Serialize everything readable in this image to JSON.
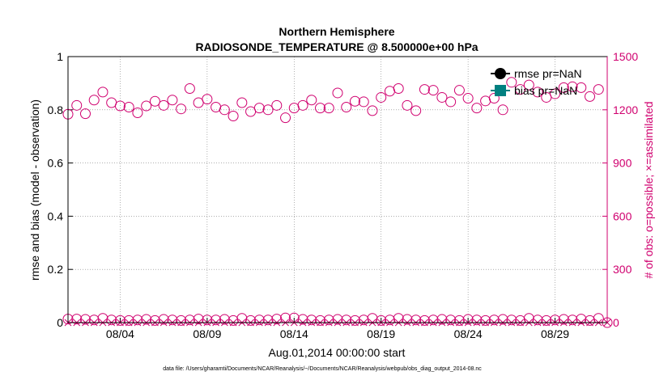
{
  "chart_data": {
    "type": "scatter",
    "title": "Northern Hemisphere",
    "subtitle": "RADIOSONDE_TEMPERATURE @ 8.500000e+00 hPa",
    "xlabel": "Aug.01,2014 00:00:00 start",
    "ylabel_left": "rmse and bias (model - observation)",
    "ylabel_right": "# of obs: o=possible; ×=assimilated",
    "footnote": "data file: /Users/gharamti/Documents/NCAR/Reanalysis/~/Documents/NCAR/Reanalysis/webpub/obs_diag_output_2014-08.nc",
    "xlim_days": [
      0,
      31
    ],
    "ylim_left": [
      0,
      1
    ],
    "ylim_right": [
      0,
      1500
    ],
    "left_ticks": [
      "0",
      "0.2",
      "0.4",
      "0.6",
      "0.8",
      "1"
    ],
    "left_tick_values": [
      0,
      0.2,
      0.4,
      0.6,
      0.8,
      1
    ],
    "right_ticks": [
      "0",
      "300",
      "600",
      "900",
      "1200",
      "1500"
    ],
    "right_tick_values": [
      0,
      300,
      600,
      900,
      1200,
      1500
    ],
    "x_ticks": [
      {
        "label": "08/04",
        "day": 3
      },
      {
        "label": "08/09",
        "day": 8
      },
      {
        "label": "08/14",
        "day": 13
      },
      {
        "label": "08/19",
        "day": 18
      },
      {
        "label": "08/24",
        "day": 23
      },
      {
        "label": "08/29",
        "day": 28
      }
    ],
    "legend": [
      {
        "label": "rmse pr=NaN",
        "color": "#000000"
      },
      {
        "label": "bias pr=NaN",
        "color": "#008080"
      }
    ],
    "legend_position": "top-right",
    "grid": true,
    "colors": {
      "obs": "#d0006f",
      "axis": "#000000"
    },
    "series": [
      {
        "name": "possible obs (upper cluster)",
        "marker": "circle",
        "values": [
          {
            "x": 0.0,
            "y": 1175
          },
          {
            "x": 0.5,
            "y": 1225
          },
          {
            "x": 1.0,
            "y": 1178
          },
          {
            "x": 1.5,
            "y": 1255
          },
          {
            "x": 2.0,
            "y": 1300
          },
          {
            "x": 2.5,
            "y": 1240
          },
          {
            "x": 3.0,
            "y": 1222
          },
          {
            "x": 3.5,
            "y": 1215
          },
          {
            "x": 4.0,
            "y": 1183
          },
          {
            "x": 4.5,
            "y": 1222
          },
          {
            "x": 5.0,
            "y": 1248
          },
          {
            "x": 5.5,
            "y": 1225
          },
          {
            "x": 6.0,
            "y": 1255
          },
          {
            "x": 6.5,
            "y": 1205
          },
          {
            "x": 7.0,
            "y": 1320
          },
          {
            "x": 7.5,
            "y": 1240
          },
          {
            "x": 8.0,
            "y": 1260
          },
          {
            "x": 8.5,
            "y": 1215
          },
          {
            "x": 9.0,
            "y": 1200
          },
          {
            "x": 9.5,
            "y": 1165
          },
          {
            "x": 10.0,
            "y": 1240
          },
          {
            "x": 10.5,
            "y": 1190
          },
          {
            "x": 11.0,
            "y": 1210
          },
          {
            "x": 11.5,
            "y": 1200
          },
          {
            "x": 12.0,
            "y": 1225
          },
          {
            "x": 12.5,
            "y": 1155
          },
          {
            "x": 13.0,
            "y": 1210
          },
          {
            "x": 13.5,
            "y": 1225
          },
          {
            "x": 14.0,
            "y": 1255
          },
          {
            "x": 14.5,
            "y": 1210
          },
          {
            "x": 15.0,
            "y": 1210
          },
          {
            "x": 15.5,
            "y": 1295
          },
          {
            "x": 16.0,
            "y": 1215
          },
          {
            "x": 16.5,
            "y": 1248
          },
          {
            "x": 17.0,
            "y": 1245
          },
          {
            "x": 17.5,
            "y": 1195
          },
          {
            "x": 18.0,
            "y": 1270
          },
          {
            "x": 18.5,
            "y": 1305
          },
          {
            "x": 19.0,
            "y": 1320
          },
          {
            "x": 19.5,
            "y": 1225
          },
          {
            "x": 20.0,
            "y": 1195
          },
          {
            "x": 20.5,
            "y": 1315
          },
          {
            "x": 21.0,
            "y": 1310
          },
          {
            "x": 21.5,
            "y": 1270
          },
          {
            "x": 22.0,
            "y": 1245
          },
          {
            "x": 22.5,
            "y": 1310
          },
          {
            "x": 23.0,
            "y": 1265
          },
          {
            "x": 23.5,
            "y": 1210
          },
          {
            "x": 24.0,
            "y": 1250
          },
          {
            "x": 24.5,
            "y": 1265
          },
          {
            "x": 25.0,
            "y": 1200
          },
          {
            "x": 25.5,
            "y": 1355
          },
          {
            "x": 26.0,
            "y": 1315
          },
          {
            "x": 26.5,
            "y": 1340
          },
          {
            "x": 27.0,
            "y": 1300
          },
          {
            "x": 27.5,
            "y": 1270
          },
          {
            "x": 28.0,
            "y": 1290
          },
          {
            "x": 28.5,
            "y": 1325
          },
          {
            "x": 29.0,
            "y": 1330
          },
          {
            "x": 29.5,
            "y": 1325
          },
          {
            "x": 30.0,
            "y": 1275
          },
          {
            "x": 30.5,
            "y": 1315
          }
        ]
      },
      {
        "name": "possible obs (lower cluster)",
        "marker": "circle",
        "values": [
          {
            "x": 0.0,
            "y": 20
          },
          {
            "x": 0.5,
            "y": 20
          },
          {
            "x": 1.0,
            "y": 18
          },
          {
            "x": 1.5,
            "y": 15
          },
          {
            "x": 2.0,
            "y": 24
          },
          {
            "x": 2.5,
            "y": 15
          },
          {
            "x": 3.0,
            "y": 12
          },
          {
            "x": 3.5,
            "y": 12
          },
          {
            "x": 4.0,
            "y": 15
          },
          {
            "x": 4.5,
            "y": 18
          },
          {
            "x": 5.0,
            "y": 12
          },
          {
            "x": 5.5,
            "y": 18
          },
          {
            "x": 6.0,
            "y": 15
          },
          {
            "x": 6.5,
            "y": 12
          },
          {
            "x": 7.0,
            "y": 15
          },
          {
            "x": 7.5,
            "y": 20
          },
          {
            "x": 8.0,
            "y": 15
          },
          {
            "x": 8.5,
            "y": 15
          },
          {
            "x": 9.0,
            "y": 18
          },
          {
            "x": 9.5,
            "y": 12
          },
          {
            "x": 10.0,
            "y": 24
          },
          {
            "x": 10.5,
            "y": 12
          },
          {
            "x": 11.0,
            "y": 15
          },
          {
            "x": 11.5,
            "y": 15
          },
          {
            "x": 12.0,
            "y": 20
          },
          {
            "x": 12.5,
            "y": 26
          },
          {
            "x": 13.0,
            "y": 26
          },
          {
            "x": 13.5,
            "y": 18
          },
          {
            "x": 14.0,
            "y": 15
          },
          {
            "x": 14.5,
            "y": 12
          },
          {
            "x": 15.0,
            "y": 15
          },
          {
            "x": 15.5,
            "y": 18
          },
          {
            "x": 16.0,
            "y": 15
          },
          {
            "x": 16.5,
            "y": 12
          },
          {
            "x": 17.0,
            "y": 15
          },
          {
            "x": 17.5,
            "y": 24
          },
          {
            "x": 18.0,
            "y": 12
          },
          {
            "x": 18.5,
            "y": 15
          },
          {
            "x": 19.0,
            "y": 24
          },
          {
            "x": 19.5,
            "y": 18
          },
          {
            "x": 20.0,
            "y": 15
          },
          {
            "x": 20.5,
            "y": 12
          },
          {
            "x": 21.0,
            "y": 15
          },
          {
            "x": 21.5,
            "y": 18
          },
          {
            "x": 22.0,
            "y": 15
          },
          {
            "x": 22.5,
            "y": 12
          },
          {
            "x": 23.0,
            "y": 18
          },
          {
            "x": 23.5,
            "y": 15
          },
          {
            "x": 24.0,
            "y": 12
          },
          {
            "x": 24.5,
            "y": 15
          },
          {
            "x": 25.0,
            "y": 18
          },
          {
            "x": 25.5,
            "y": 15
          },
          {
            "x": 26.0,
            "y": 12
          },
          {
            "x": 26.5,
            "y": 24
          },
          {
            "x": 27.0,
            "y": 15
          },
          {
            "x": 27.5,
            "y": 12
          },
          {
            "x": 28.0,
            "y": 15
          },
          {
            "x": 28.5,
            "y": 18
          },
          {
            "x": 29.0,
            "y": 15
          },
          {
            "x": 29.5,
            "y": 20
          },
          {
            "x": 30.0,
            "y": 12
          },
          {
            "x": 30.5,
            "y": 24
          },
          {
            "x": 31.0,
            "y": 0
          }
        ]
      },
      {
        "name": "assimilated obs",
        "marker": "x",
        "values": [
          {
            "x": 0.0,
            "y": 0
          },
          {
            "x": 0.5,
            "y": 0
          },
          {
            "x": 1.0,
            "y": 0
          },
          {
            "x": 1.5,
            "y": 0
          },
          {
            "x": 2.0,
            "y": 0
          },
          {
            "x": 2.5,
            "y": 0
          },
          {
            "x": 3.0,
            "y": 0
          },
          {
            "x": 3.5,
            "y": 0
          },
          {
            "x": 4.0,
            "y": 0
          },
          {
            "x": 4.5,
            "y": 0
          },
          {
            "x": 5.0,
            "y": 0
          },
          {
            "x": 5.5,
            "y": 0
          },
          {
            "x": 6.0,
            "y": 0
          },
          {
            "x": 6.5,
            "y": 0
          },
          {
            "x": 7.0,
            "y": 0
          },
          {
            "x": 7.5,
            "y": 0
          },
          {
            "x": 8.0,
            "y": 0
          },
          {
            "x": 8.5,
            "y": 0
          },
          {
            "x": 9.0,
            "y": 0
          },
          {
            "x": 9.5,
            "y": 0
          },
          {
            "x": 10.0,
            "y": 0
          },
          {
            "x": 10.5,
            "y": 0
          },
          {
            "x": 11.0,
            "y": 0
          },
          {
            "x": 11.5,
            "y": 0
          },
          {
            "x": 12.0,
            "y": 0
          },
          {
            "x": 12.5,
            "y": 0
          },
          {
            "x": 13.0,
            "y": 0
          },
          {
            "x": 13.5,
            "y": 0
          },
          {
            "x": 14.0,
            "y": 0
          },
          {
            "x": 14.5,
            "y": 0
          },
          {
            "x": 15.0,
            "y": 0
          },
          {
            "x": 15.5,
            "y": 0
          },
          {
            "x": 16.0,
            "y": 0
          },
          {
            "x": 16.5,
            "y": 0
          },
          {
            "x": 17.0,
            "y": 0
          },
          {
            "x": 17.5,
            "y": 0
          },
          {
            "x": 18.0,
            "y": 0
          },
          {
            "x": 18.5,
            "y": 0
          },
          {
            "x": 19.0,
            "y": 0
          },
          {
            "x": 19.5,
            "y": 0
          },
          {
            "x": 20.0,
            "y": 0
          },
          {
            "x": 20.5,
            "y": 0
          },
          {
            "x": 21.0,
            "y": 0
          },
          {
            "x": 21.5,
            "y": 0
          },
          {
            "x": 22.0,
            "y": 0
          },
          {
            "x": 22.5,
            "y": 0
          },
          {
            "x": 23.0,
            "y": 0
          },
          {
            "x": 23.5,
            "y": 0
          },
          {
            "x": 24.0,
            "y": 0
          },
          {
            "x": 24.5,
            "y": 0
          },
          {
            "x": 25.0,
            "y": 0
          },
          {
            "x": 25.5,
            "y": 0
          },
          {
            "x": 26.0,
            "y": 0
          },
          {
            "x": 26.5,
            "y": 0
          },
          {
            "x": 27.0,
            "y": 0
          },
          {
            "x": 27.5,
            "y": 0
          },
          {
            "x": 28.0,
            "y": 0
          },
          {
            "x": 28.5,
            "y": 0
          },
          {
            "x": 29.0,
            "y": 0
          },
          {
            "x": 29.5,
            "y": 0
          },
          {
            "x": 30.0,
            "y": 0
          },
          {
            "x": 30.5,
            "y": 0
          },
          {
            "x": 31.0,
            "y": 0
          }
        ]
      }
    ]
  }
}
